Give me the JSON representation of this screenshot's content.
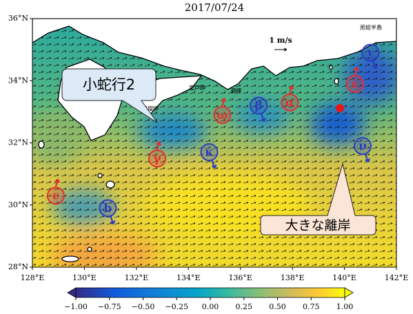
{
  "map": {
    "title": "2017/07/24",
    "xlim": [
      128,
      142
    ],
    "ylim": [
      28,
      36
    ],
    "xticks": [
      {
        "value": 128,
        "label": "128°E"
      },
      {
        "value": 130,
        "label": "130°E"
      },
      {
        "value": 132,
        "label": "132°E"
      },
      {
        "value": 134,
        "label": "134°E"
      },
      {
        "value": 136,
        "label": "136°E"
      },
      {
        "value": 138,
        "label": "138°E"
      },
      {
        "value": 140,
        "label": "140°E"
      },
      {
        "value": 142,
        "label": "142°E"
      }
    ],
    "yticks": [
      {
        "value": 28,
        "label": "28°N"
      },
      {
        "value": 30,
        "label": "30°N"
      },
      {
        "value": 32,
        "label": "32°N"
      },
      {
        "value": 34,
        "label": "34°N"
      },
      {
        "value": 36,
        "label": "36°N"
      }
    ],
    "scale_label": "1 m/s",
    "place_names": [
      "足摺岬",
      "室戸岬",
      "潮岬",
      "房総半島"
    ],
    "eddies": [
      {
        "label": "c",
        "color": "#e03030",
        "lon": 128.9,
        "lat": 30.3
      },
      {
        "label": "b",
        "color": "#2a3fbf",
        "lon": 130.9,
        "lat": 29.9
      },
      {
        "label": "γ",
        "color": "#e03030",
        "lon": 132.8,
        "lat": 31.5
      },
      {
        "label": "κ",
        "color": "#2a3fbf",
        "lon": 134.8,
        "lat": 31.7
      },
      {
        "label": "ω",
        "color": "#e03030",
        "lon": 135.3,
        "lat": 32.9
      },
      {
        "label": "β",
        "color": "#2a3fbf",
        "lon": 136.7,
        "lat": 33.2
      },
      {
        "label": "α",
        "color": "#e03030",
        "lon": 137.9,
        "lat": 33.3
      },
      {
        "label": "ε",
        "color": "#e03030",
        "lon": 140.4,
        "lat": 33.9
      },
      {
        "label": "ι",
        "color": "#2a3fbf",
        "lon": 141.0,
        "lat": 34.9
      },
      {
        "label": "ν",
        "color": "#2a3fbf",
        "lon": 140.7,
        "lat": 31.9
      }
    ],
    "callouts": [
      "小蛇行2",
      "大きな離岸"
    ],
    "colorbar": {
      "clim": [
        -1,
        1
      ],
      "ticks": [
        {
          "value": -1,
          "label": "−1.00"
        },
        {
          "value": -0.75,
          "label": "−0.75"
        },
        {
          "value": -0.5,
          "label": "−0.50"
        },
        {
          "value": -0.25,
          "label": "−0.25"
        },
        {
          "value": 0,
          "label": "0.00"
        },
        {
          "value": 0.25,
          "label": "0.25"
        },
        {
          "value": 0.5,
          "label": "0.50"
        },
        {
          "value": 0.75,
          "label": "0.75"
        },
        {
          "value": 1,
          "label": "1.00"
        }
      ]
    }
  }
}
